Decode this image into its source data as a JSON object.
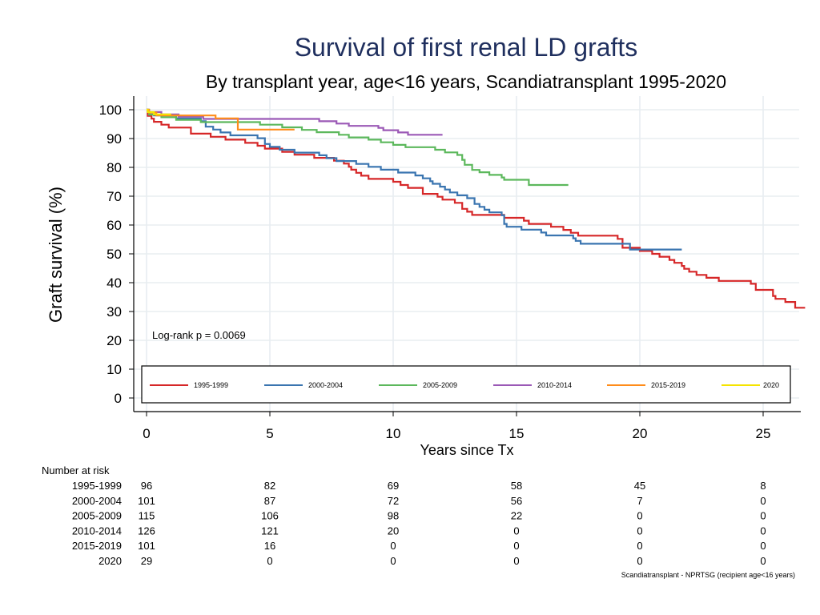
{
  "chart_data": {
    "type": "line",
    "title": "Survival of first renal LD grafts",
    "subtitle": "By transplant year, age<16 years, Scandiatransplant 1995-2020",
    "xlabel": "Years since Tx",
    "ylabel": "Graft survival (%)",
    "xlim": [
      -0.5,
      26.5
    ],
    "ylim": [
      -3,
      105
    ],
    "x_ticks": [
      0,
      5,
      10,
      15,
      20,
      25
    ],
    "y_ticks": [
      0,
      10,
      20,
      30,
      40,
      50,
      60,
      70,
      80,
      90,
      100
    ],
    "grid": true,
    "annotation": "Log-rank p = 0.0069",
    "legend_position": "bottom-inside",
    "series": [
      {
        "name": "1995-1999",
        "color": "#d62728",
        "points": [
          [
            0,
            100
          ],
          [
            0.05,
            97.9
          ],
          [
            0.2,
            96.9
          ],
          [
            0.3,
            95.8
          ],
          [
            0.6,
            94.8
          ],
          [
            0.9,
            93.8
          ],
          [
            1.8,
            91.7
          ],
          [
            2.6,
            90.6
          ],
          [
            3.2,
            89.6
          ],
          [
            4,
            88.5
          ],
          [
            4.5,
            87.5
          ],
          [
            4.8,
            86.5
          ],
          [
            5.5,
            85.4
          ],
          [
            6,
            84.4
          ],
          [
            6.8,
            83.3
          ],
          [
            7.6,
            82.3
          ],
          [
            8.0,
            81.3
          ],
          [
            8.2,
            80.2
          ],
          [
            8.3,
            79.2
          ],
          [
            8.5,
            78.1
          ],
          [
            8.7,
            77.1
          ],
          [
            9,
            76
          ],
          [
            10,
            75
          ],
          [
            10.3,
            73.9
          ],
          [
            10.6,
            72.9
          ],
          [
            11.2,
            70.8
          ],
          [
            11.7,
            70.8
          ],
          [
            11.8,
            69.8
          ],
          [
            12.0,
            68.8
          ],
          [
            12.5,
            67.7
          ],
          [
            12.8,
            65.6
          ],
          [
            13.0,
            64.6
          ],
          [
            13.2,
            63.5
          ],
          [
            14.5,
            62.5
          ],
          [
            15.3,
            61.5
          ],
          [
            15.5,
            60.4
          ],
          [
            16.4,
            59.4
          ],
          [
            16.9,
            58.3
          ],
          [
            17.2,
            57.3
          ],
          [
            17.5,
            56.3
          ],
          [
            19.1,
            55.2
          ],
          [
            19.1,
            55.2
          ],
          [
            19.3,
            53.1
          ],
          [
            19.3,
            52.1
          ],
          [
            20.0,
            51.0
          ],
          [
            20.5,
            50.0
          ],
          [
            20.8,
            49.0
          ],
          [
            21.2,
            47.9
          ],
          [
            21.4,
            46.9
          ],
          [
            21.7,
            45.8
          ],
          [
            21.8,
            44.8
          ],
          [
            22.0,
            43.8
          ],
          [
            22.3,
            42.7
          ],
          [
            22.7,
            41.7
          ],
          [
            23.2,
            40.6
          ],
          [
            24.5,
            39.6
          ],
          [
            24.7,
            37.5
          ],
          [
            25.4,
            35.4
          ],
          [
            25.5,
            34.4
          ],
          [
            25.9,
            33.3
          ],
          [
            26.3,
            31.3
          ],
          [
            26.7,
            31.3
          ]
        ]
      },
      {
        "name": "2000-2004",
        "color": "#3a75b0",
        "points": [
          [
            0,
            100
          ],
          [
            0.1,
            99
          ],
          [
            0.3,
            98
          ],
          [
            1.2,
            97
          ],
          [
            2.2,
            96
          ],
          [
            2.4,
            94.1
          ],
          [
            2.7,
            93.1
          ],
          [
            3,
            92.1
          ],
          [
            3.4,
            91.1
          ],
          [
            4.5,
            90.1
          ],
          [
            4.8,
            88.1
          ],
          [
            5.0,
            87.1
          ],
          [
            5.4,
            86.1
          ],
          [
            6,
            85.1
          ],
          [
            7,
            84.2
          ],
          [
            7.3,
            83.2
          ],
          [
            7.7,
            82.2
          ],
          [
            8.5,
            81.2
          ],
          [
            9,
            80.2
          ],
          [
            9.5,
            79.2
          ],
          [
            10.2,
            78.2
          ],
          [
            10.9,
            77.2
          ],
          [
            11.2,
            76.2
          ],
          [
            11.5,
            75.2
          ],
          [
            11.6,
            74.3
          ],
          [
            11.9,
            73.3
          ],
          [
            12.1,
            72.3
          ],
          [
            12.3,
            71.3
          ],
          [
            12.6,
            70.3
          ],
          [
            13,
            69.3
          ],
          [
            13.3,
            67.3
          ],
          [
            13.5,
            66.3
          ],
          [
            13.7,
            65.3
          ],
          [
            13.9,
            64.4
          ],
          [
            14.4,
            63.4
          ],
          [
            14.5,
            60.4
          ],
          [
            14.6,
            59.4
          ],
          [
            15.2,
            58.4
          ],
          [
            16.0,
            57.4
          ],
          [
            16.2,
            56.4
          ],
          [
            17.3,
            55.4
          ],
          [
            17.4,
            54.5
          ],
          [
            17.6,
            53.5
          ],
          [
            19.6,
            51.5
          ],
          [
            21.7,
            51.5
          ]
        ]
      },
      {
        "name": "2005-2009",
        "color": "#5cb85c",
        "points": [
          [
            0,
            100
          ],
          [
            0.1,
            98.3
          ],
          [
            0.6,
            97.4
          ],
          [
            1.2,
            96.5
          ],
          [
            2.2,
            95.7
          ],
          [
            4.6,
            94.8
          ],
          [
            5.5,
            93.9
          ],
          [
            6.3,
            93.0
          ],
          [
            6.9,
            92.2
          ],
          [
            7.8,
            91.3
          ],
          [
            8.2,
            90.4
          ],
          [
            9.0,
            89.6
          ],
          [
            9.5,
            88.7
          ],
          [
            10,
            87.8
          ],
          [
            10.5,
            87.0
          ],
          [
            11.7,
            86.1
          ],
          [
            12.1,
            85.2
          ],
          [
            12.6,
            84.3
          ],
          [
            12.8,
            82.6
          ],
          [
            12.9,
            80.9
          ],
          [
            13.2,
            79.1
          ],
          [
            13.5,
            78.3
          ],
          [
            13.9,
            77.4
          ],
          [
            14.4,
            76.5
          ],
          [
            14.5,
            75.7
          ],
          [
            15.5,
            73.9
          ],
          [
            17.1,
            73.9
          ]
        ]
      },
      {
        "name": "2010-2014",
        "color": "#9b59b6",
        "points": [
          [
            0,
            100
          ],
          [
            0.05,
            99.2
          ],
          [
            0.6,
            98.4
          ],
          [
            1.3,
            97.6
          ],
          [
            2.3,
            96.8
          ],
          [
            7.0,
            96.0
          ],
          [
            7.7,
            95.2
          ],
          [
            8.2,
            94.4
          ],
          [
            9.4,
            93.7
          ],
          [
            9.6,
            92.9
          ],
          [
            10.2,
            92.1
          ],
          [
            10.6,
            91.3
          ],
          [
            12.0,
            91.3
          ]
        ]
      },
      {
        "name": "2015-2019",
        "color": "#ff8c1a",
        "points": [
          [
            0,
            100
          ],
          [
            0.1,
            99.0
          ],
          [
            0.4,
            98.0
          ],
          [
            2.8,
            97.0
          ],
          [
            3.7,
            93.1
          ],
          [
            6.0,
            93.1
          ]
        ]
      },
      {
        "name": "2020",
        "color": "#f5e400",
        "points": [
          [
            0,
            100
          ],
          [
            0.05,
            99.2
          ],
          [
            0.3,
            98.4
          ],
          [
            1.0,
            98.4
          ]
        ]
      }
    ]
  },
  "risk_table": {
    "header": "Number at risk",
    "columns": [
      0,
      5,
      10,
      15,
      20,
      25
    ],
    "rows": [
      {
        "label": "1995-1999",
        "values": [
          "96",
          "82",
          "69",
          "58",
          "45",
          "8"
        ]
      },
      {
        "label": "2000-2004",
        "values": [
          "101",
          "87",
          "72",
          "56",
          "7",
          "0"
        ]
      },
      {
        "label": "2005-2009",
        "values": [
          "115",
          "106",
          "98",
          "22",
          "0",
          "0"
        ]
      },
      {
        "label": "2010-2014",
        "values": [
          "126",
          "121",
          "20",
          "0",
          "0",
          "0"
        ]
      },
      {
        "label": "2015-2019",
        "values": [
          "101",
          "16",
          "0",
          "0",
          "0",
          "0"
        ]
      },
      {
        "label": "2020",
        "values": [
          "29",
          "0",
          "0",
          "0",
          "0",
          "0"
        ]
      }
    ]
  },
  "source_note": "Scandiatransplant - NPRTSG (recipient age<16 years)"
}
